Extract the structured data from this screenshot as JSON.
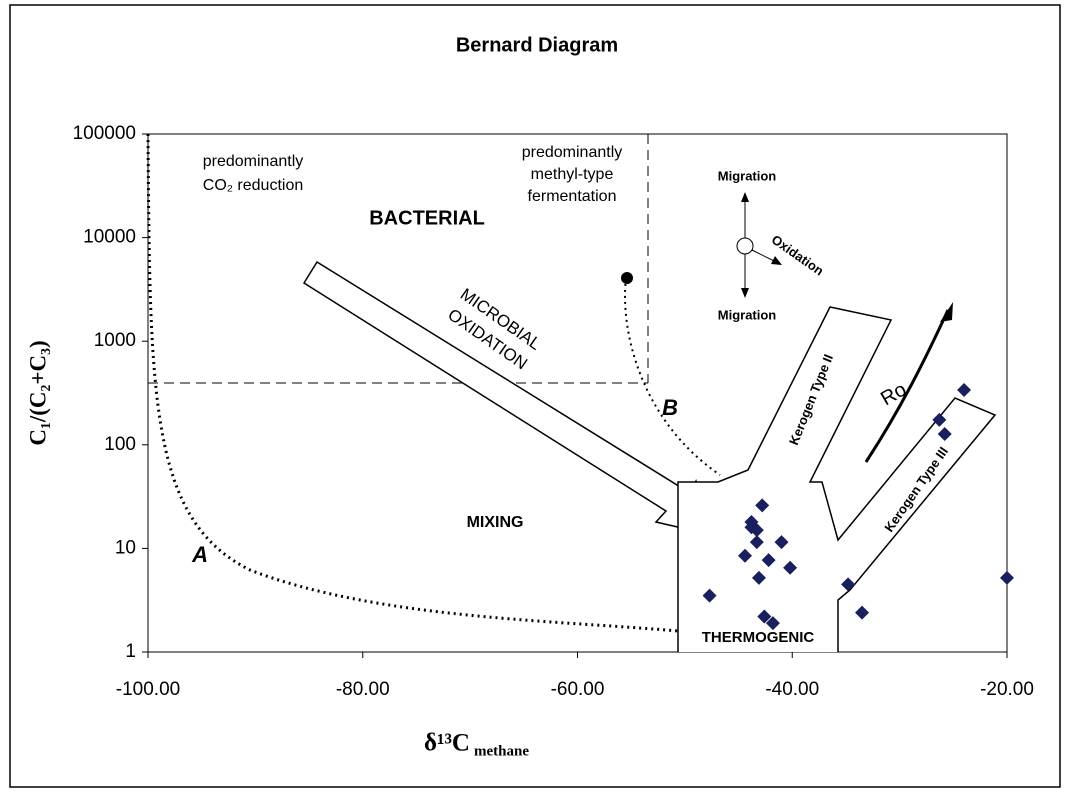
{
  "chart_data": {
    "type": "scatter",
    "title": "Bernard Diagram",
    "x_label": "δ¹³C",
    "x_label_sub": "methane",
    "y_label": "C₁/(C₂+C₃)",
    "xlim": [
      -100,
      -20
    ],
    "xticks": [
      {
        "value": -100,
        "label": "-100.00"
      },
      {
        "value": -80,
        "label": "-80.00"
      },
      {
        "value": -60,
        "label": "-60.00"
      },
      {
        "value": -40,
        "label": "-40.00"
      },
      {
        "value": -20,
        "label": "-20.00"
      }
    ],
    "ylim": [
      1,
      100000
    ],
    "log_y": true,
    "yticks": [
      1,
      10,
      100,
      1000,
      10000,
      100000
    ],
    "color": "#1a1f5e",
    "x": [
      -47.7,
      -42.8,
      -43.8,
      -43.3,
      -43.8,
      -43.3,
      -44.4,
      -42.2,
      -41.0,
      -40.2,
      -43.1,
      -42.6,
      -41.8,
      -34.8,
      -33.5,
      -26.3,
      -25.8,
      -24.0,
      -20.0
    ],
    "values": [
      3.5,
      26,
      18,
      15,
      16,
      11.5,
      8.5,
      7.7,
      11.5,
      6.5,
      5.2,
      2.2,
      1.9,
      4.5,
      2.4,
      174,
      127,
      338,
      5.2
    ],
    "annotations": [
      "predominantly",
      "CO₂ reduction",
      "BACTERIAL",
      "predominantly",
      "methyl-type",
      "fermentation",
      "MICROBIAL",
      "OXIDATION",
      "B",
      "A",
      "MIXING",
      "THERMOGENIC",
      "Migration",
      "Migration",
      "Oxidation",
      "Kerogen Type II",
      "Kerogen Type III",
      "Ro"
    ]
  }
}
